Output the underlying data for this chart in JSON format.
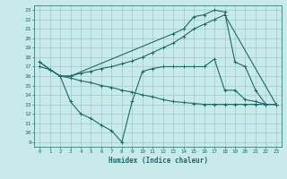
{
  "title": "",
  "xlabel": "Humidex (Indice chaleur)",
  "ylabel": "",
  "xlim": [
    -0.5,
    23.5
  ],
  "ylim": [
    8.5,
    23.5
  ],
  "yticks": [
    9,
    10,
    11,
    12,
    13,
    14,
    15,
    16,
    17,
    18,
    19,
    20,
    21,
    22,
    23
  ],
  "xticks": [
    0,
    1,
    2,
    3,
    4,
    5,
    6,
    7,
    8,
    9,
    10,
    11,
    12,
    13,
    14,
    15,
    16,
    17,
    18,
    19,
    20,
    21,
    22,
    23
  ],
  "bg_color": "#c8eaea",
  "grid_color": "#a0c8c8",
  "line_color": "#1a6b6b",
  "line1_x": [
    0,
    1,
    2,
    3,
    4,
    5,
    6,
    7,
    8,
    9,
    10,
    11,
    12,
    13,
    14,
    15,
    16,
    17,
    18,
    23
  ],
  "line1_y": [
    17.5,
    16.7,
    16.0,
    16.0,
    16.3,
    16.5,
    16.8,
    17.0,
    17.3,
    17.6,
    18.0,
    18.5,
    19.0,
    19.5,
    20.2,
    21.0,
    21.5,
    22.0,
    22.5,
    13.0
  ],
  "line2_x": [
    0,
    1,
    2,
    3,
    13,
    14,
    15,
    16,
    17,
    18,
    19,
    20,
    21,
    22,
    23
  ],
  "line2_y": [
    17.5,
    16.7,
    16.0,
    16.0,
    20.5,
    21.0,
    22.3,
    22.5,
    23.0,
    22.8,
    17.5,
    17.0,
    14.5,
    13.0,
    13.0
  ],
  "line3_x": [
    0,
    1,
    2,
    3,
    4,
    5,
    6,
    7,
    8,
    9,
    10,
    11,
    12,
    13,
    14,
    15,
    16,
    17,
    18,
    19,
    20,
    21,
    22,
    23
  ],
  "line3_y": [
    17.0,
    16.7,
    16.0,
    15.8,
    15.5,
    15.3,
    15.0,
    14.8,
    14.5,
    14.3,
    14.0,
    13.8,
    13.5,
    13.3,
    13.2,
    13.1,
    13.0,
    13.0,
    13.0,
    13.0,
    13.0,
    13.0,
    13.0,
    13.0
  ],
  "line4_x": [
    2,
    3,
    4,
    5,
    6,
    7,
    8,
    9,
    10,
    11,
    12,
    13,
    14,
    15,
    16,
    17,
    18,
    19,
    20,
    21,
    22,
    23
  ],
  "line4_y": [
    16.0,
    13.3,
    12.0,
    11.5,
    10.8,
    10.2,
    9.0,
    13.3,
    16.5,
    16.8,
    17.0,
    17.0,
    17.0,
    17.0,
    17.0,
    17.8,
    14.5,
    14.5,
    13.5,
    13.3,
    13.0,
    13.0
  ]
}
